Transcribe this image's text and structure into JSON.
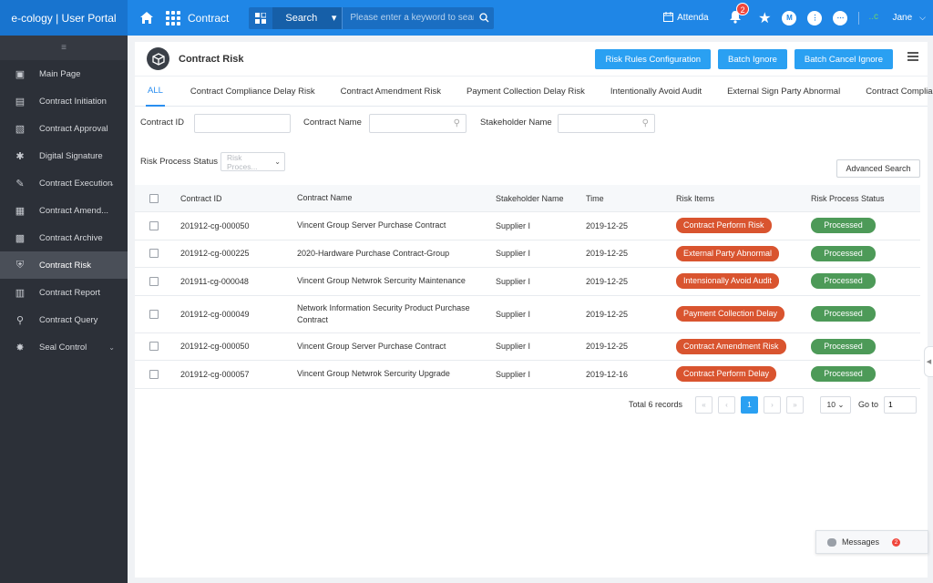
{
  "brand": {
    "title": "e-cology | User Portal"
  },
  "topbar": {
    "module": "Contract",
    "search": {
      "type": "Search",
      "placeholder": "Please enter a keyword to search"
    },
    "attendance": "Attenda",
    "bell_count": "2",
    "avatar_letter": "M",
    "user_name": "Jane",
    "user_avatar_text": "..c"
  },
  "sidebar": {
    "items": [
      {
        "label": "Main Page",
        "icon": "monitor-icon"
      },
      {
        "label": "Contract Initiation",
        "icon": "document-icon"
      },
      {
        "label": "Contract Approval",
        "icon": "approval-icon"
      },
      {
        "label": "Digital Signature",
        "icon": "signature-icon"
      },
      {
        "label": "Contract Execution",
        "icon": "edit-icon",
        "expandable": true
      },
      {
        "label": "Contract Amend...",
        "icon": "amend-icon"
      },
      {
        "label": "Contract Archive",
        "icon": "archive-icon"
      },
      {
        "label": "Contract Risk",
        "icon": "shield-icon",
        "active": true
      },
      {
        "label": "Contract Report",
        "icon": "chart-icon"
      },
      {
        "label": "Contract Query",
        "icon": "search-icon"
      },
      {
        "label": "Seal Control",
        "icon": "seal-icon",
        "expandable": true
      }
    ]
  },
  "page": {
    "title": "Contract Risk",
    "buttons": {
      "rules": "Risk Rules Configuration",
      "ignore": "Batch Ignore",
      "cancel_ignore": "Batch Cancel Ignore"
    }
  },
  "tabs": [
    "ALL",
    "Contract Compliance Delay Risk",
    "Contract Amendment Risk",
    "Payment Collection Delay Risk",
    "Intentionally Avoid Audit",
    "External Sign Party Abnormal",
    "Contract Compliance Risk"
  ],
  "filters": {
    "contract_id": "Contract ID",
    "contract_name": "Contract Name",
    "stakeholder_name": "Stakeholder Name",
    "risk_status": "Risk Process Status",
    "risk_status_placeholder": "Risk Proces...",
    "advanced": "Advanced Search"
  },
  "table": {
    "headers": [
      "Contract ID",
      "Contract Name",
      "Stakeholder Name",
      "Time",
      "Risk Items",
      "Risk Process Status"
    ],
    "rows": [
      {
        "id": "201912-cg-000050",
        "name": "Vincent Group Server Purchase Contract",
        "stakeholder": "Supplier I",
        "time": "2019-12-25",
        "risk": "Contract Perform Risk",
        "status": "Processed"
      },
      {
        "id": "201912-cg-000225",
        "name": "2020-Hardware Purchase Contract-Group",
        "stakeholder": "Supplier I",
        "time": "2019-12-25",
        "risk": "External Party Abnormal",
        "status": "Processed"
      },
      {
        "id": "201911-cg-000048",
        "name": "Vincent Group Netwrok Sercurity Maintenance",
        "stakeholder": "Supplier I",
        "time": "2019-12-25",
        "risk": "Intensionally Avoid Audit",
        "status": "Processed"
      },
      {
        "id": "201912-cg-000049",
        "name": "Network Information Security Product Purchase Contract",
        "stakeholder": "Supplier I",
        "time": "2019-12-25",
        "risk": "Payment Collection Delay",
        "status": "Processed"
      },
      {
        "id": "201912-cg-000050",
        "name": "Vincent Group Server Purchase Contract",
        "stakeholder": "Supplier I",
        "time": "2019-12-25",
        "risk": "Contract Amendment Risk",
        "status": "Processed"
      },
      {
        "id": "201912-cg-000057",
        "name": "Vincent Group Netwrok Sercurity Upgrade",
        "stakeholder": "Supplier I",
        "time": "2019-12-16",
        "risk": "Contract Perform Delay",
        "status": "Processed"
      }
    ]
  },
  "pager": {
    "total": "Total 6 records",
    "current": "1",
    "page_size": "10",
    "goto_label": "Go to",
    "goto_value": "1"
  },
  "messages": {
    "label": "Messages",
    "count": "2"
  },
  "colors": {
    "primary": "#1f86e6",
    "risk": "#d9542f",
    "processed": "#4d9a58",
    "sidebar": "#2c3038"
  }
}
